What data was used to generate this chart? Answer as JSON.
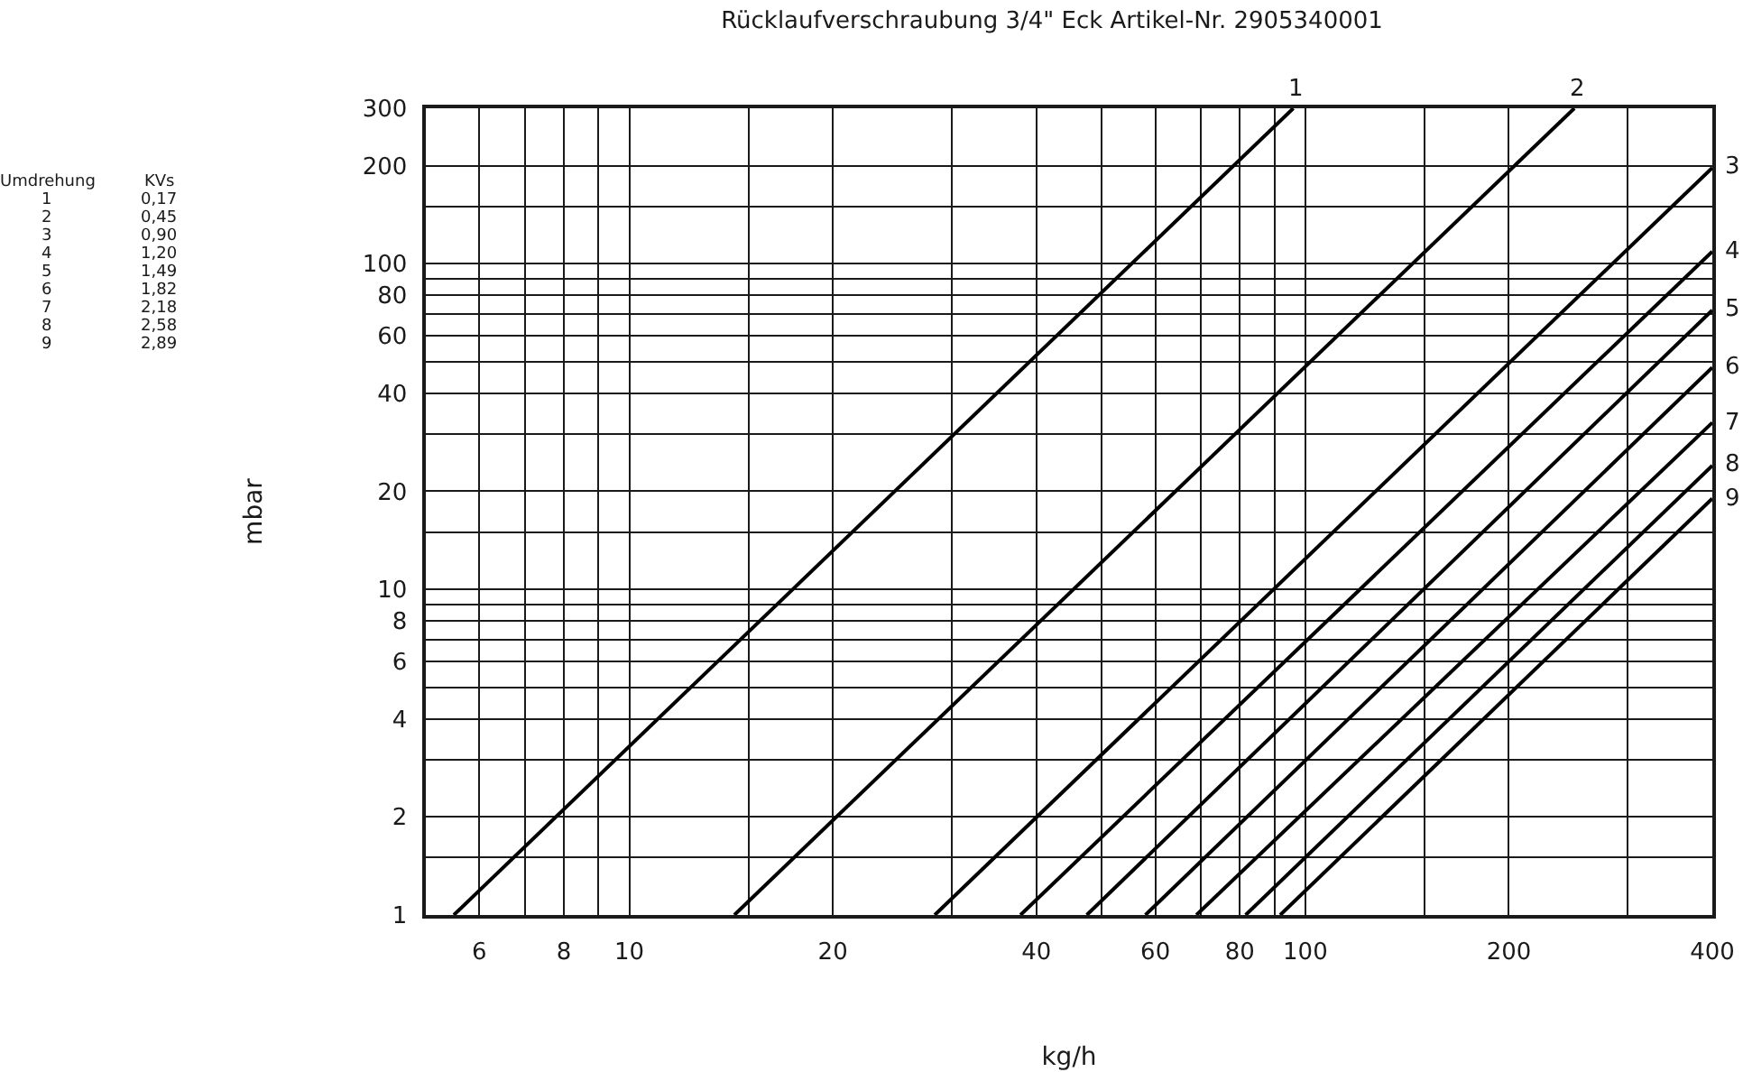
{
  "chart_data": {
    "type": "line",
    "title": "Rücklaufverschraubung 3/4\" Eck Artikel-Nr. 2905340001",
    "xlabel": "kg/h",
    "ylabel": "mbar",
    "log": "xy",
    "grid": true,
    "legend": false,
    "marker": "none",
    "line_style": "solid",
    "xlim": [
      5,
      400
    ],
    "ylim": [
      1,
      300
    ],
    "xticks": [
      6,
      {
        "value": 7,
        "label": null
      },
      8,
      {
        "value": 9,
        "label": null
      },
      10,
      {
        "value": 15,
        "label": null
      },
      20,
      {
        "value": 30,
        "label": null
      },
      40,
      {
        "value": 50,
        "label": null
      },
      60,
      {
        "value": 70,
        "label": null
      },
      80,
      {
        "value": 90,
        "label": null
      },
      100,
      {
        "value": 150,
        "label": null
      },
      200,
      {
        "value": 300,
        "label": null
      },
      400
    ],
    "yticks": [
      1,
      {
        "value": 1.5,
        "label": null
      },
      2,
      {
        "value": 3,
        "label": null
      },
      4,
      {
        "value": 5,
        "label": null
      },
      6,
      {
        "value": 7,
        "label": null
      },
      8,
      {
        "value": 9,
        "label": null
      },
      10,
      {
        "value": 15,
        "label": null
      },
      20,
      {
        "value": 30,
        "label": null
      },
      40,
      {
        "value": 50,
        "label": null
      },
      60,
      {
        "value": 70,
        "label": null
      },
      80,
      {
        "value": 90,
        "label": null
      },
      100,
      {
        "value": 150,
        "label": null
      },
      200,
      300
    ],
    "series": [
      {
        "name": "1",
        "color": "#000000",
        "x": [
          5.5,
          96
        ],
        "values": [
          1,
          300
        ]
      },
      {
        "name": "2",
        "color": "#000000",
        "x": [
          14.3,
          250
        ],
        "values": [
          1,
          300
        ]
      },
      {
        "name": "3",
        "color": "#000000",
        "x": [
          28.3,
          400
        ],
        "values": [
          1,
          197
        ]
      },
      {
        "name": "4",
        "color": "#000000",
        "x": [
          37.9,
          400
        ],
        "values": [
          1,
          109
        ]
      },
      {
        "name": "5",
        "color": "#000000",
        "x": [
          47.5,
          400
        ],
        "values": [
          1,
          72
        ]
      },
      {
        "name": "6",
        "color": "#000000",
        "x": [
          58,
          400
        ],
        "values": [
          1,
          48
        ]
      },
      {
        "name": "7",
        "color": "#000000",
        "x": [
          69,
          400
        ],
        "values": [
          1,
          32.5
        ]
      },
      {
        "name": "8",
        "color": "#000000",
        "x": [
          81.6,
          400
        ],
        "values": [
          1,
          24
        ]
      },
      {
        "name": "9",
        "color": "#000000",
        "x": [
          91.8,
          400
        ],
        "values": [
          1,
          19
        ]
      }
    ],
    "annotations": [
      "Umdrehung",
      "KVs",
      "1",
      "0,17",
      "2",
      "0,45",
      "3",
      "0,90",
      "4",
      "1,20",
      "5",
      "1,49",
      "6",
      "1,82",
      "7",
      "2,18",
      "8",
      "2,58",
      "9",
      "2,89"
    ]
  }
}
